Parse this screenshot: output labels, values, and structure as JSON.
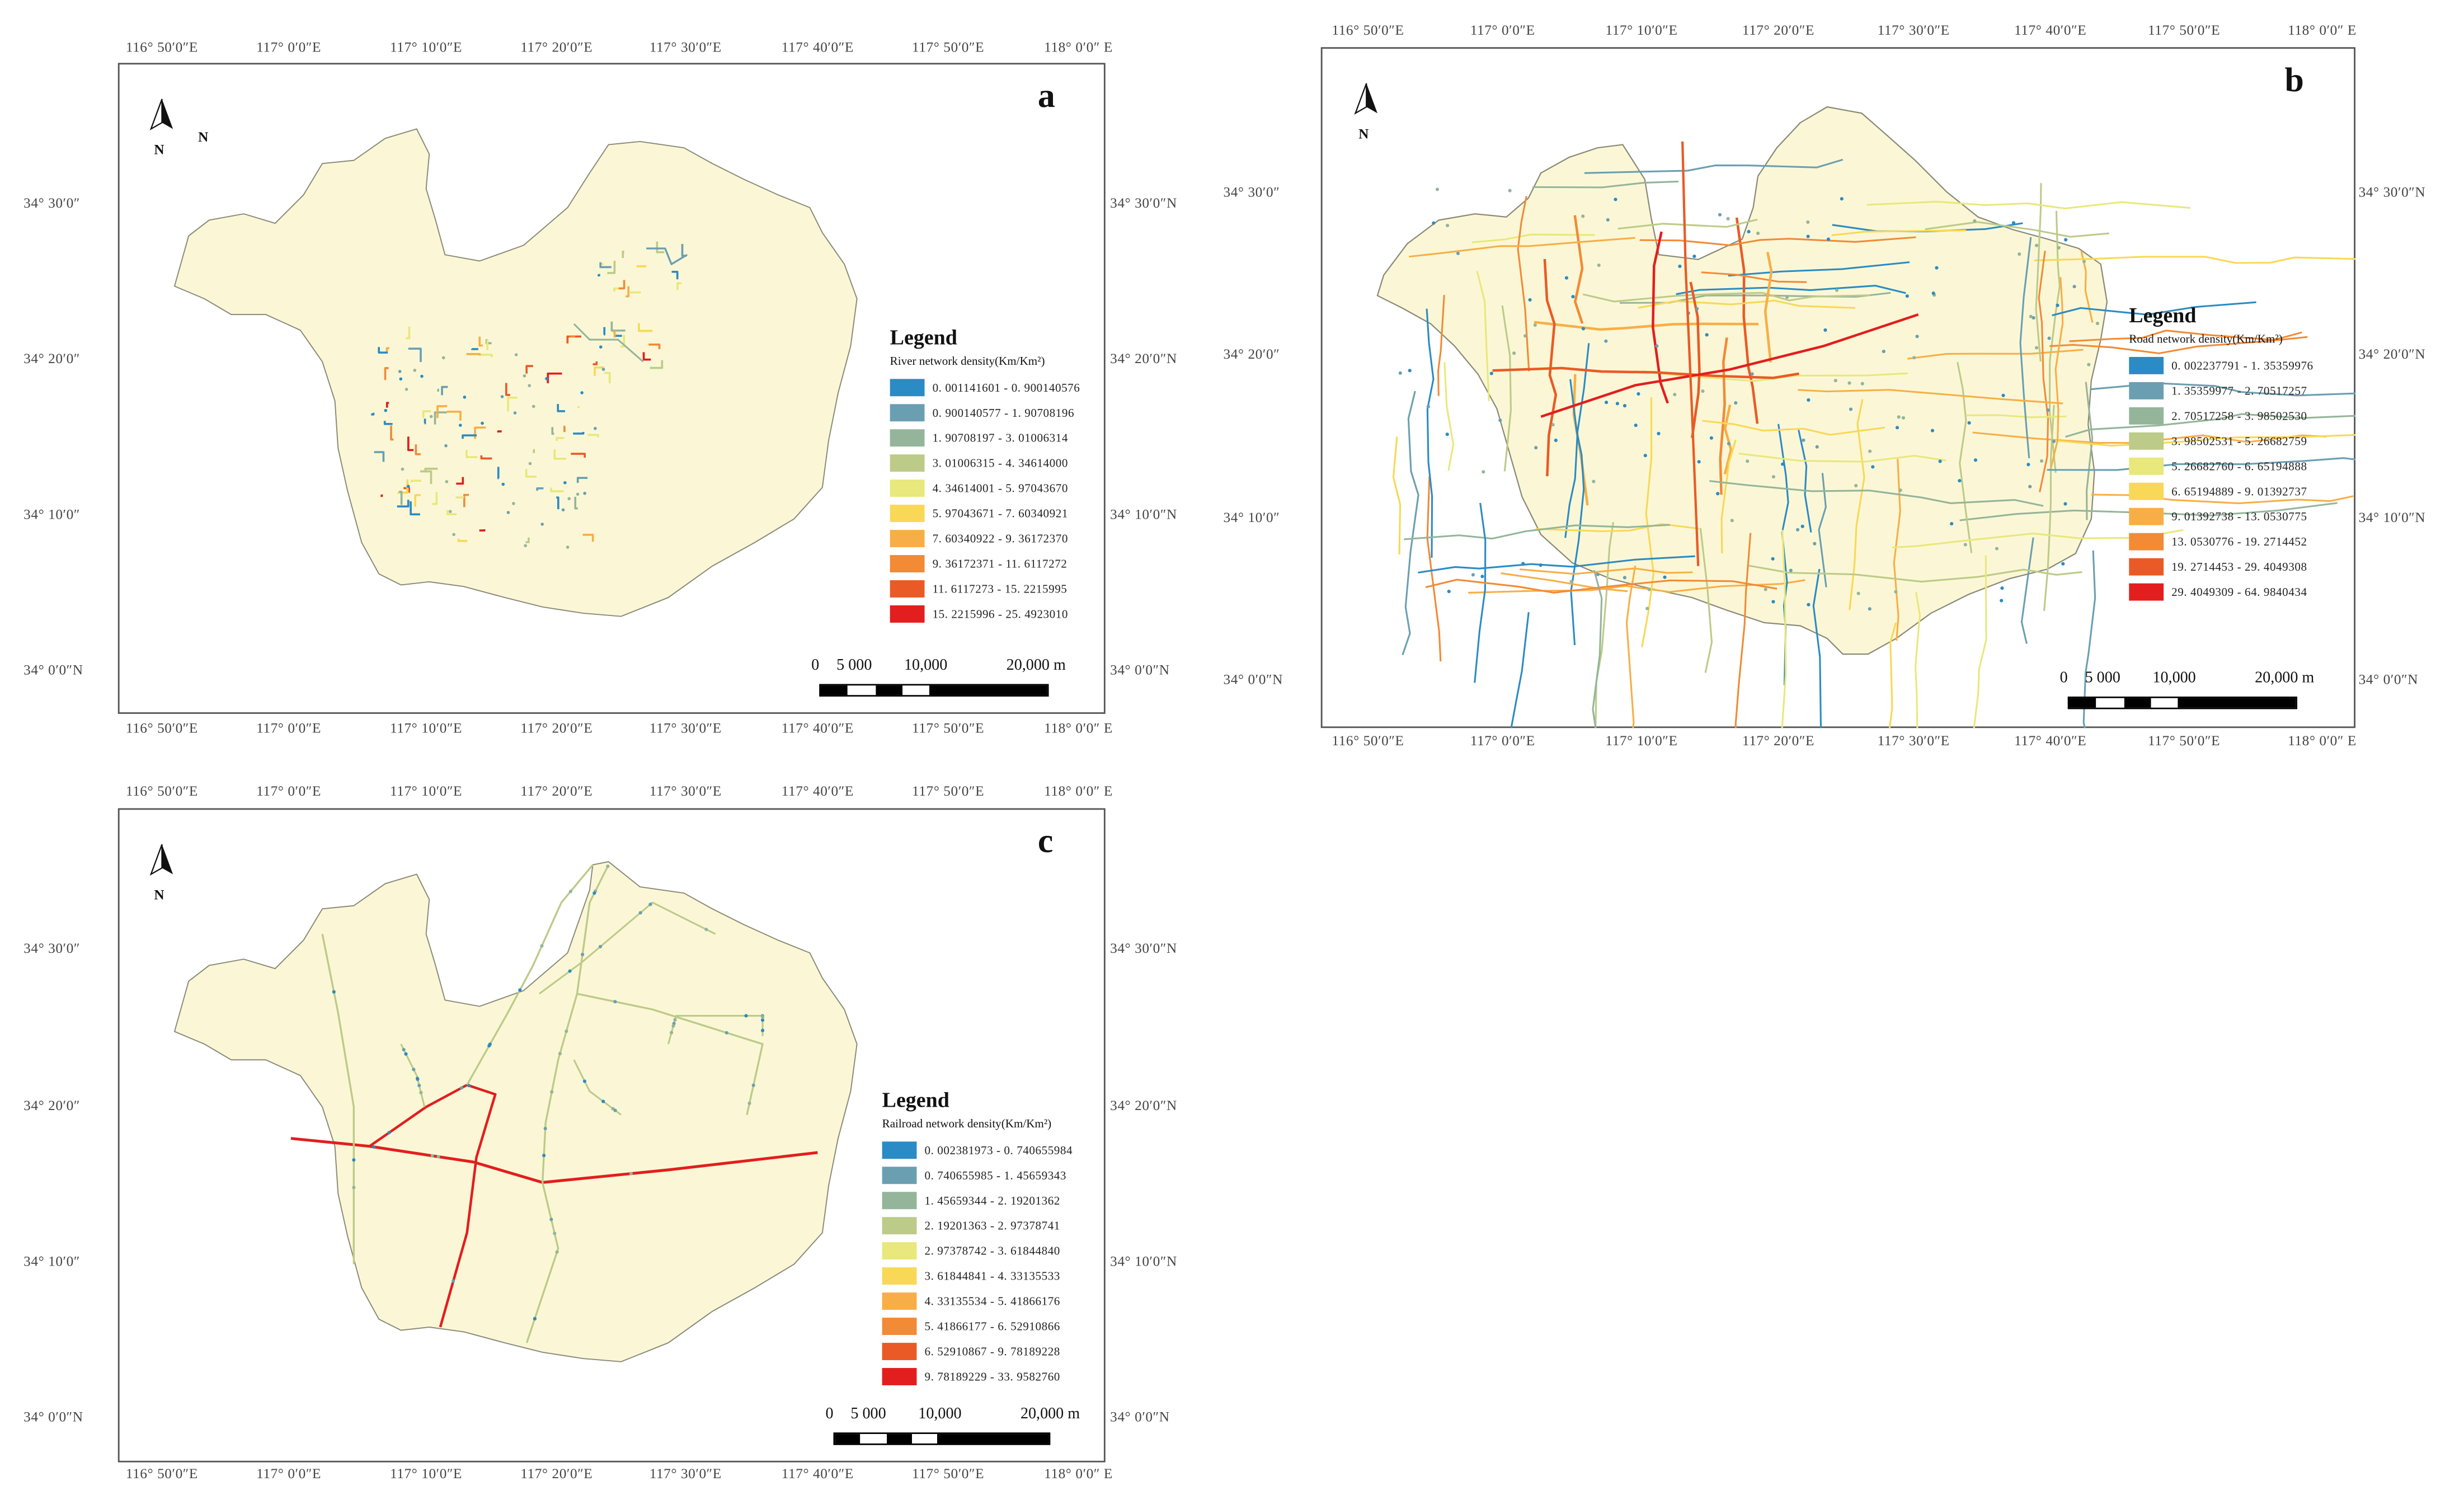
{
  "lon_labels": [
    "116° 50′0″E",
    "117° 0′0″E",
    "117° 10′0″E",
    "117° 20′0″E",
    "117° 30′0″E",
    "117° 40′0″E",
    "117° 50′0″E",
    "118° 0′0″ E"
  ],
  "lat_labels": [
    "34° 30′0″",
    "34° 20′0″",
    "34° 10′0″",
    "34° 0′0″N"
  ],
  "lat_labels_right": [
    "34° 30′0″N",
    "34° 20′0″N",
    "34° 10′0″N",
    "34° 0′0″N"
  ],
  "panels": {
    "a": {
      "letter": "a",
      "north": "N",
      "north_extra": "N",
      "legend_title": "Legend",
      "legend_subtitle": "River network density(Km/Km²)",
      "classes": [
        {
          "label": "0. 001141601 - 0. 900140576",
          "color": "#2b8bc4"
        },
        {
          "label": "0. 900140577 - 1. 90708196",
          "color": "#6a9fb2"
        },
        {
          "label": "1. 90708197 - 3. 01006314",
          "color": "#94b59a"
        },
        {
          "label": "3. 01006315 - 4. 34614000",
          "color": "#bccb88"
        },
        {
          "label": "4. 34614001 - 5. 97043670",
          "color": "#e8e87c"
        },
        {
          "label": "5. 97043671 - 7. 60340921",
          "color": "#f8d856"
        },
        {
          "label": "7. 60340922 - 9. 36172370",
          "color": "#f8ae46"
        },
        {
          "label": "9. 36172371 - 11. 6117272",
          "color": "#f28a36"
        },
        {
          "label": "11. 6117273 - 15. 2215995",
          "color": "#ea5a26"
        },
        {
          "label": "15. 2215996 - 25. 4923010",
          "color": "#e31e1e"
        }
      ],
      "scale": {
        "ticks": [
          "0",
          "5 000",
          "10,000",
          "20,000 m"
        ]
      }
    },
    "b": {
      "letter": "b",
      "north": "N",
      "legend_title": "Legend",
      "legend_subtitle": "Road network density(Km/Km²)",
      "classes": [
        {
          "label": "0. 002237791 - 1. 35359976",
          "color": "#2b8bc4"
        },
        {
          "label": "1. 35359977 - 2. 70517257",
          "color": "#6a9fb2"
        },
        {
          "label": "2. 70517258 - 3. 98502530",
          "color": "#94b59a"
        },
        {
          "label": "3. 98502531 - 5. 26682759",
          "color": "#bccb88"
        },
        {
          "label": "5. 26682760 - 6. 65194888",
          "color": "#e8e87c"
        },
        {
          "label": "6. 65194889 - 9. 01392737",
          "color": "#f8d856"
        },
        {
          "label": "9. 01392738 - 13. 0530775",
          "color": "#f8ae46"
        },
        {
          "label": "13. 0530776 - 19. 2714452",
          "color": "#f28a36"
        },
        {
          "label": "19. 2714453 - 29. 4049308",
          "color": "#ea5a26"
        },
        {
          "label": "29. 4049309 - 64. 9840434",
          "color": "#e31e1e"
        }
      ],
      "scale": {
        "ticks": [
          "0",
          "5 000",
          "10,000",
          "20,000 m"
        ]
      }
    },
    "c": {
      "letter": "c",
      "north": "N",
      "legend_title": "Legend",
      "legend_subtitle": "Railroad network density(Km/Km²)",
      "classes": [
        {
          "label": "0. 002381973 - 0. 740655984",
          "color": "#2b8bc4"
        },
        {
          "label": "0. 740655985 - 1. 45659343",
          "color": "#6a9fb2"
        },
        {
          "label": "1. 45659344 - 2. 19201362",
          "color": "#94b59a"
        },
        {
          "label": "2. 19201363 - 2. 97378741",
          "color": "#bccb88"
        },
        {
          "label": "2. 97378742 - 3. 61844840",
          "color": "#e8e87c"
        },
        {
          "label": "3. 61844841 - 4. 33135533",
          "color": "#f8d856"
        },
        {
          "label": "4. 33135534 - 5. 41866176",
          "color": "#f8ae46"
        },
        {
          "label": "5. 41866177 - 6. 52910866",
          "color": "#f28a36"
        },
        {
          "label": "6. 52910867 - 9. 78189228",
          "color": "#ea5a26"
        },
        {
          "label": "9. 78189229 - 33. 9582760",
          "color": "#e31e1e"
        }
      ],
      "scale": {
        "ticks": [
          "0",
          "5 000",
          "10,000",
          "20,000 m"
        ]
      }
    }
  },
  "colors": {
    "land": "#fbf7d6",
    "outline": "#8a8a78"
  }
}
